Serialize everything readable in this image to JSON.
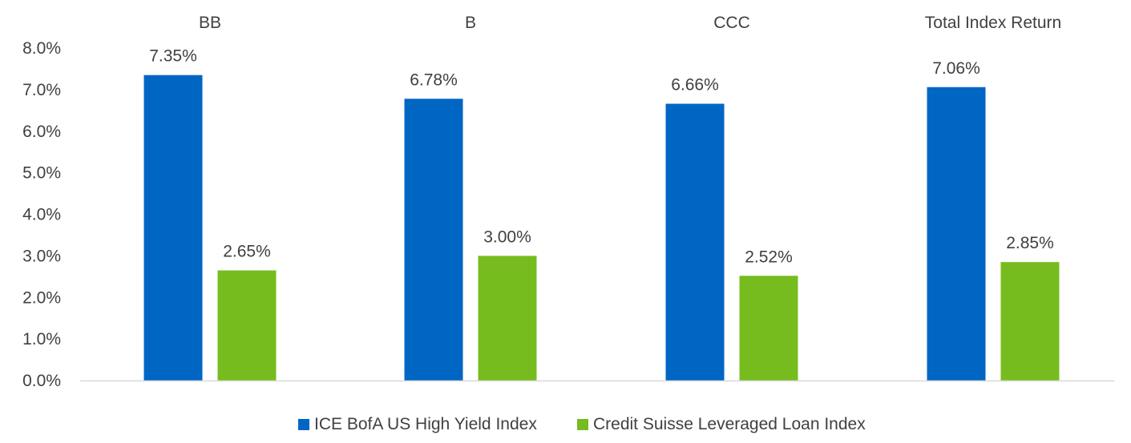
{
  "chart_data": {
    "type": "bar",
    "categories": [
      "BB",
      "B",
      "CCC",
      "Total Index Return"
    ],
    "series": [
      {
        "name": "ICE BofA US High Yield Index",
        "values": [
          7.35,
          6.78,
          6.66,
          7.06
        ],
        "labels": [
          "7.35%",
          "6.78%",
          "6.66%",
          "7.06%"
        ],
        "color": "#0066C4"
      },
      {
        "name": "Credit Suisse Leveraged Loan Index",
        "values": [
          2.65,
          3.0,
          2.52,
          2.85
        ],
        "labels": [
          "2.65%",
          "3.00%",
          "2.52%",
          "2.85%"
        ],
        "color": "#77BC1F"
      }
    ],
    "y_ticks": [
      0,
      1,
      2,
      3,
      4,
      5,
      6,
      7,
      8
    ],
    "y_tick_labels": [
      "0.0%",
      "1.0%",
      "2.0%",
      "3.0%",
      "4.0%",
      "5.0%",
      "6.0%",
      "7.0%",
      "8.0%"
    ],
    "ylim": [
      0,
      8
    ],
    "category_label_position": "top",
    "legend_position": "bottom-center",
    "grid": false,
    "title": "",
    "xlabel": "",
    "ylabel": ""
  }
}
